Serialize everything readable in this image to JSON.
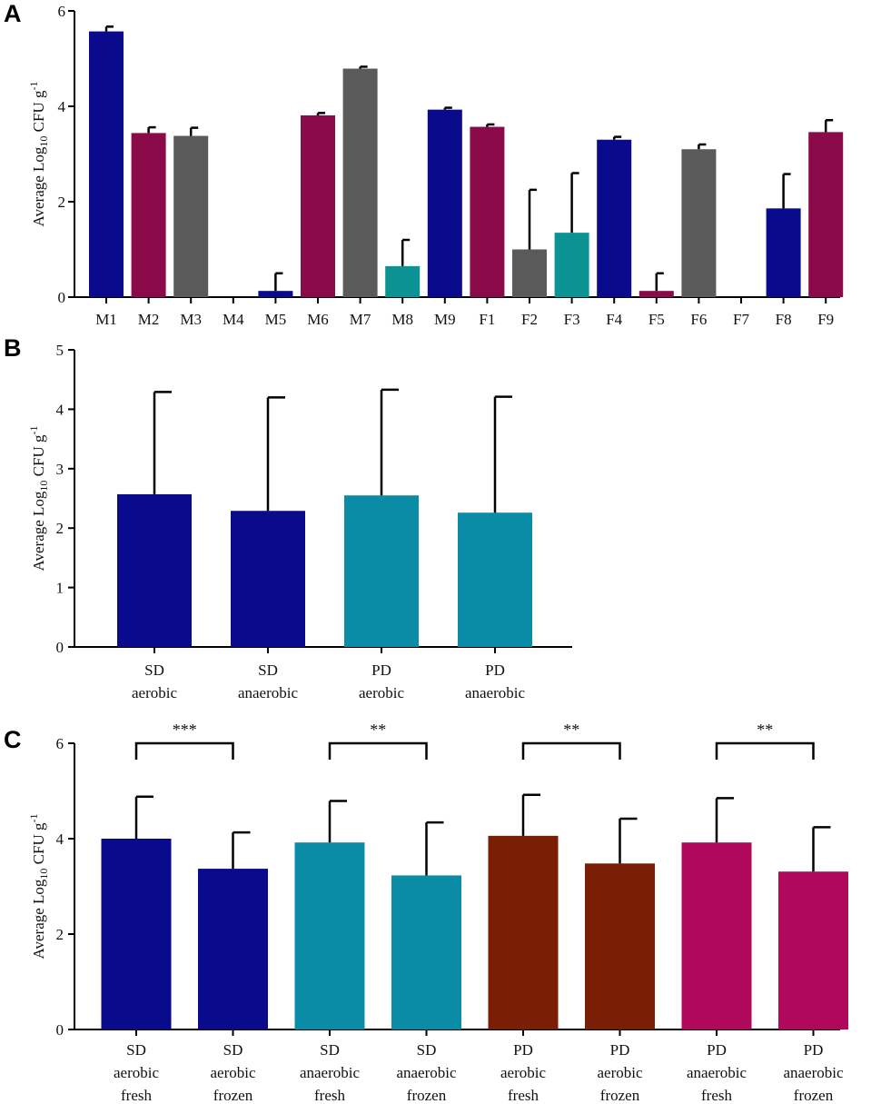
{
  "colors": {
    "navy": "#0a0a8c",
    "maroon": "#8b0a4a",
    "gray": "#5a5a5a",
    "teal_a": "#0b9393",
    "teal": "#0a8ca6",
    "brown": "#7a1f05",
    "magenta": "#b0085a"
  },
  "chart_data": [
    {
      "panel": "A",
      "type": "bar",
      "ylabel_pre": "Average Log",
      "ylabel_sub": "10",
      "ylabel_post": " CFU g",
      "ylabel_sup": "-1",
      "ylim": [
        0,
        6
      ],
      "yticks": [
        "0",
        "2",
        "4",
        "6"
      ],
      "categories": [
        "M1",
        "M2",
        "M3",
        "M4",
        "M5",
        "M6",
        "M7",
        "M8",
        "M9",
        "F1",
        "F2",
        "F3",
        "F4",
        "F5",
        "F6",
        "F7",
        "F8",
        "F9"
      ],
      "values": [
        5.57,
        3.44,
        3.38,
        0,
        0.13,
        3.81,
        4.79,
        0.65,
        3.93,
        3.57,
        1.0,
        1.35,
        3.3,
        0.13,
        3.1,
        0,
        1.86,
        3.46
      ],
      "errors": [
        0.1,
        0.12,
        0.17,
        0,
        0.37,
        0.05,
        0.04,
        0.55,
        0.04,
        0.05,
        1.25,
        1.25,
        0.06,
        0.37,
        0.1,
        0,
        0.72,
        0.25
      ],
      "colors": [
        "navy",
        "maroon",
        "gray",
        "navy",
        "navy",
        "maroon",
        "gray",
        "teal_a",
        "navy",
        "maroon",
        "gray",
        "teal_a",
        "navy",
        "maroon",
        "gray",
        "navy",
        "navy",
        "maroon"
      ]
    },
    {
      "panel": "B",
      "type": "bar",
      "ylabel_pre": "Average Log",
      "ylabel_sub": "10",
      "ylabel_post": " CFU g",
      "ylabel_sup": "-1",
      "ylim": [
        0,
        5
      ],
      "yticks": [
        "0",
        "1",
        "2",
        "3",
        "4",
        "5"
      ],
      "categories": [
        [
          "SD",
          "aerobic"
        ],
        [
          "SD",
          "anaerobic"
        ],
        [
          "PD",
          "aerobic"
        ],
        [
          "PD",
          "anaerobic"
        ]
      ],
      "values": [
        2.57,
        2.29,
        2.55,
        2.26
      ],
      "errors": [
        1.72,
        1.91,
        1.78,
        1.95
      ],
      "colors": [
        "navy",
        "navy",
        "teal",
        "teal"
      ]
    },
    {
      "panel": "C",
      "type": "bar",
      "ylabel_pre": "Average Log",
      "ylabel_sub": "10",
      "ylabel_post": " CFU g",
      "ylabel_sup": "-1",
      "ylim": [
        0,
        6
      ],
      "yticks": [
        "0",
        "2",
        "4",
        "6"
      ],
      "categories": [
        [
          "SD",
          "aerobic",
          "fresh"
        ],
        [
          "SD",
          "aerobic",
          "frozen"
        ],
        [
          "SD",
          "anaerobic",
          "fresh"
        ],
        [
          "SD",
          "anaerobic",
          "frozen"
        ],
        [
          "PD",
          "aerobic",
          "fresh"
        ],
        [
          "PD",
          "aerobic",
          "frozen"
        ],
        [
          "PD",
          "anaerobic",
          "fresh"
        ],
        [
          "PD",
          "anaerobic",
          "frozen"
        ]
      ],
      "values": [
        4.0,
        3.37,
        3.92,
        3.23,
        4.06,
        3.48,
        3.92,
        3.31
      ],
      "errors": [
        0.88,
        0.76,
        0.87,
        1.11,
        0.86,
        0.94,
        0.93,
        0.93
      ],
      "colors": [
        "navy",
        "navy",
        "teal",
        "teal",
        "brown",
        "brown",
        "magenta",
        "magenta"
      ],
      "annotations": [
        {
          "from": 0,
          "to": 1,
          "label": "***"
        },
        {
          "from": 2,
          "to": 3,
          "label": "**"
        },
        {
          "from": 4,
          "to": 5,
          "label": "**"
        },
        {
          "from": 6,
          "to": 7,
          "label": "**"
        }
      ]
    }
  ]
}
